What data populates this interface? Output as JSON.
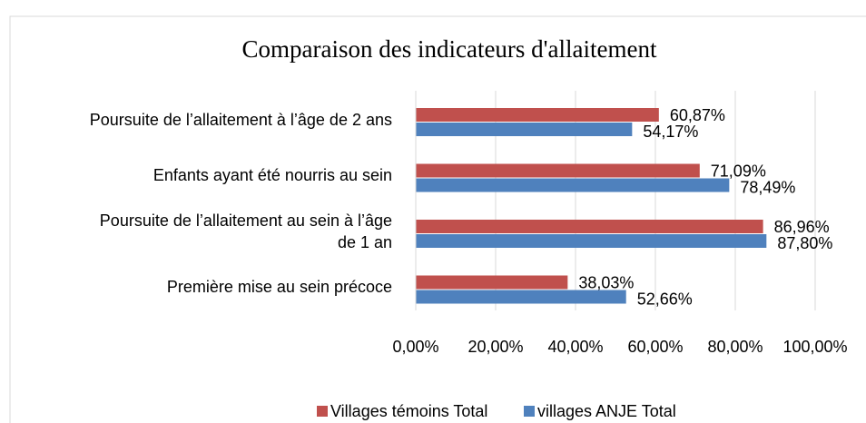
{
  "chart_data": {
    "type": "hbar",
    "title": "Comparaison des indicateurs d'allaitement",
    "categories": [
      "Poursuite de l’allaitement à l’âge de 2 ans",
      "Enfants ayant été nourris au sein",
      "Poursuite de l’allaitement au sein à l’âge\nde 1 an",
      "Première mise au sein précoce"
    ],
    "series": [
      {
        "name": "Villages témoins Total",
        "color": "#c0504d",
        "values": [
          60.87,
          71.09,
          86.96,
          38.03
        ],
        "value_labels": [
          "60,87%",
          "71,09%",
          "86,96%",
          "38,03%"
        ]
      },
      {
        "name": "villages ANJE Total",
        "color": "#4f81bd",
        "values": [
          54.17,
          78.49,
          87.8,
          52.66
        ],
        "value_labels": [
          "54,17%",
          "78,49%",
          "87,80%",
          "52,66%"
        ]
      }
    ],
    "xlim": [
      0,
      100
    ],
    "xticks": [
      {
        "value": 0,
        "label": "0,00%"
      },
      {
        "value": 20,
        "label": "20,00%"
      },
      {
        "value": 40,
        "label": "40,00%"
      },
      {
        "value": 60,
        "label": "60,00%"
      },
      {
        "value": 80,
        "label": "80,00%"
      },
      {
        "value": 100,
        "label": "100,00%"
      }
    ],
    "grid": true,
    "legend": "bottom"
  }
}
